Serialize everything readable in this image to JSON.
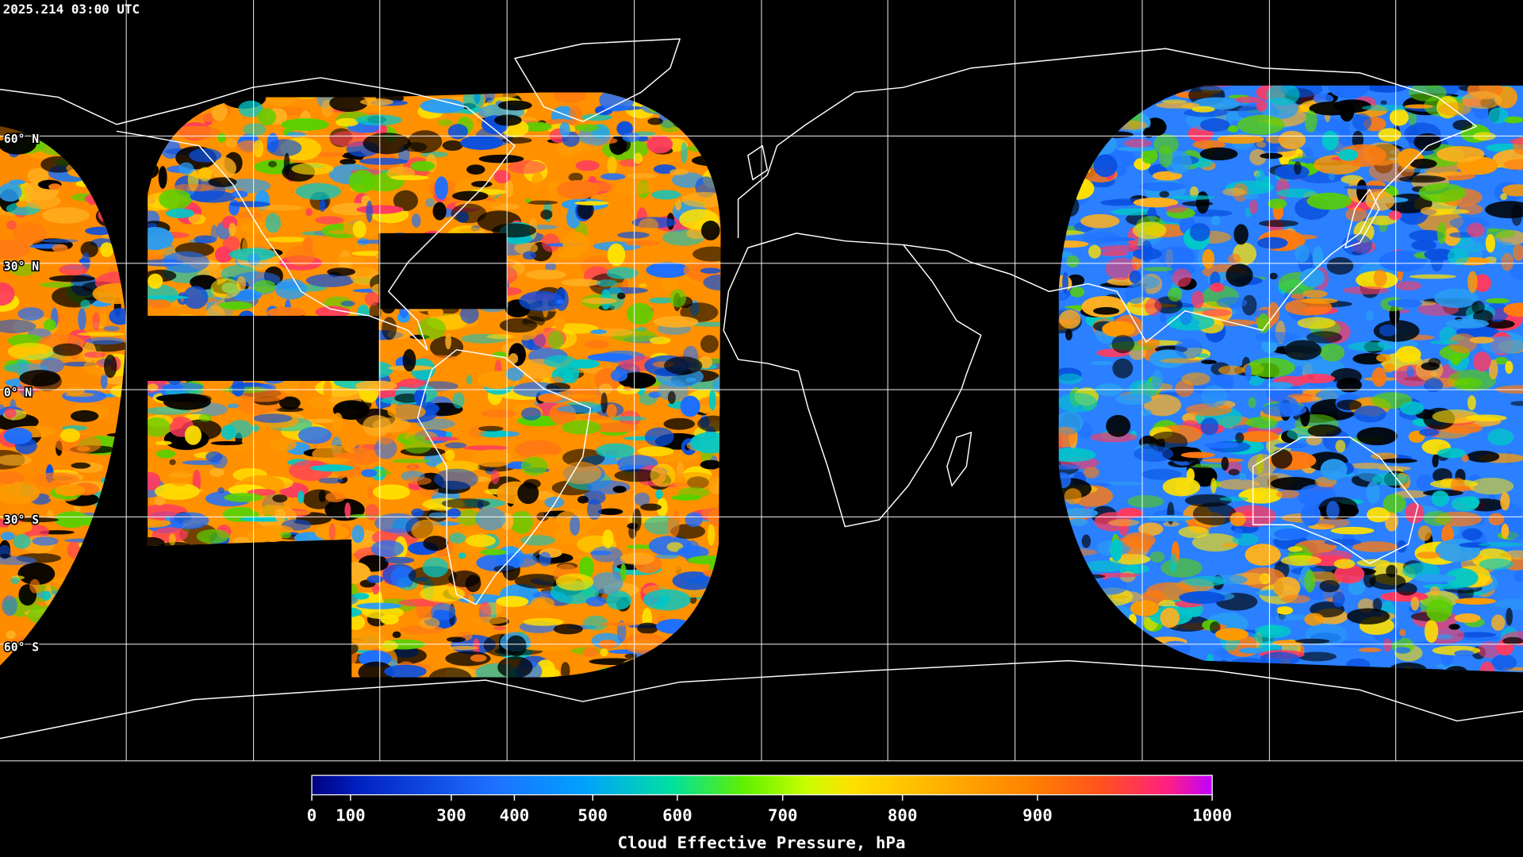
{
  "header": {
    "timestamp": "2025.214 03:00 UTC"
  },
  "map": {
    "latitude_labels": [
      "60° N",
      "30° N",
      "0° N",
      "30° S",
      "60° S"
    ]
  },
  "colorbar": {
    "title": "Cloud Effective Pressure, hPa",
    "ticks": [
      0,
      100,
      300,
      400,
      500,
      600,
      700,
      800,
      900,
      1000
    ]
  }
}
